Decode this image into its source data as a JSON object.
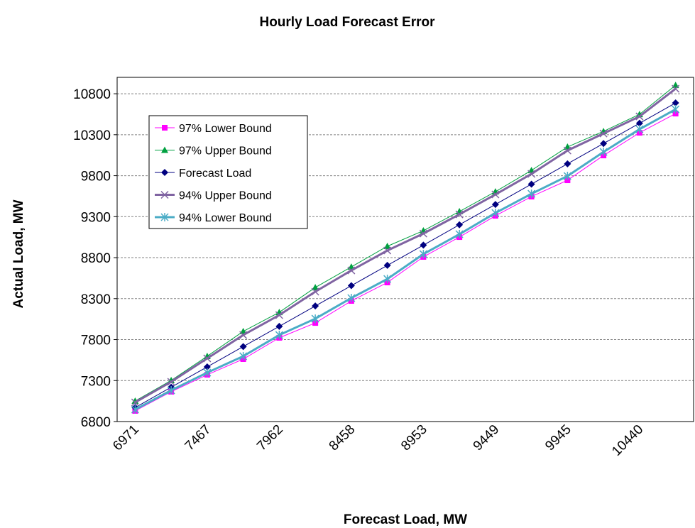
{
  "chart_data": {
    "type": "line",
    "title": "Hourly Load Forecast Error",
    "x_label": "Forecast Load, MW",
    "y_label": "Actual Load, MW",
    "categories": [
      "6971",
      null,
      "7467",
      null,
      "7962",
      null,
      "8458",
      null,
      "8953",
      null,
      "9449",
      null,
      "9945",
      null,
      "10440",
      null
    ],
    "series": [
      {
        "name": "97% Lower Bound",
        "color": "#ff00ff",
        "marker": "square",
        "line_width": 1,
        "values": [
          6930,
          7164,
          7371,
          7562,
          7822,
          8003,
          8272,
          8497,
          8809,
          9051,
          9311,
          9545,
          9744,
          10047,
          10324,
          10558
        ]
      },
      {
        "name": "97% Upper Bound",
        "color": "#00a040",
        "marker": "triangle",
        "line_width": 1,
        "values": [
          7051,
          7302,
          7597,
          7900,
          8133,
          8436,
          8687,
          8939,
          9129,
          9363,
          9605,
          9865,
          10151,
          10341,
          10549,
          10904
        ]
      },
      {
        "name": "Forecast Load",
        "color": "#000080",
        "marker": "diamond",
        "line_width": 1,
        "values": [
          6971,
          7219,
          7467,
          7715,
          7962,
          8210,
          8458,
          8706,
          8953,
          9201,
          9449,
          9697,
          9945,
          10193,
          10440,
          10688
        ]
      },
      {
        "name": "94% Upper Bound",
        "color": "#8064a2",
        "marker": "x",
        "line_width": 3,
        "values": [
          7034,
          7285,
          7571,
          7856,
          8099,
          8385,
          8644,
          8887,
          9094,
          9328,
          9571,
          9822,
          10107,
          10315,
          10523,
          10861
        ]
      },
      {
        "name": "94% Lower Bound",
        "color": "#4bacc6",
        "marker": "star",
        "line_width": 3,
        "values": [
          6947,
          7181,
          7397,
          7597,
          7856,
          8055,
          8307,
          8540,
          8843,
          9086,
          9345,
          9579,
          9796,
          10090,
          10367,
          10610
        ]
      }
    ],
    "ylim": [
      6800,
      11000
    ],
    "yticks": [
      6800,
      7300,
      7800,
      8300,
      8800,
      9300,
      9800,
      10300,
      10800
    ],
    "grid": true
  }
}
